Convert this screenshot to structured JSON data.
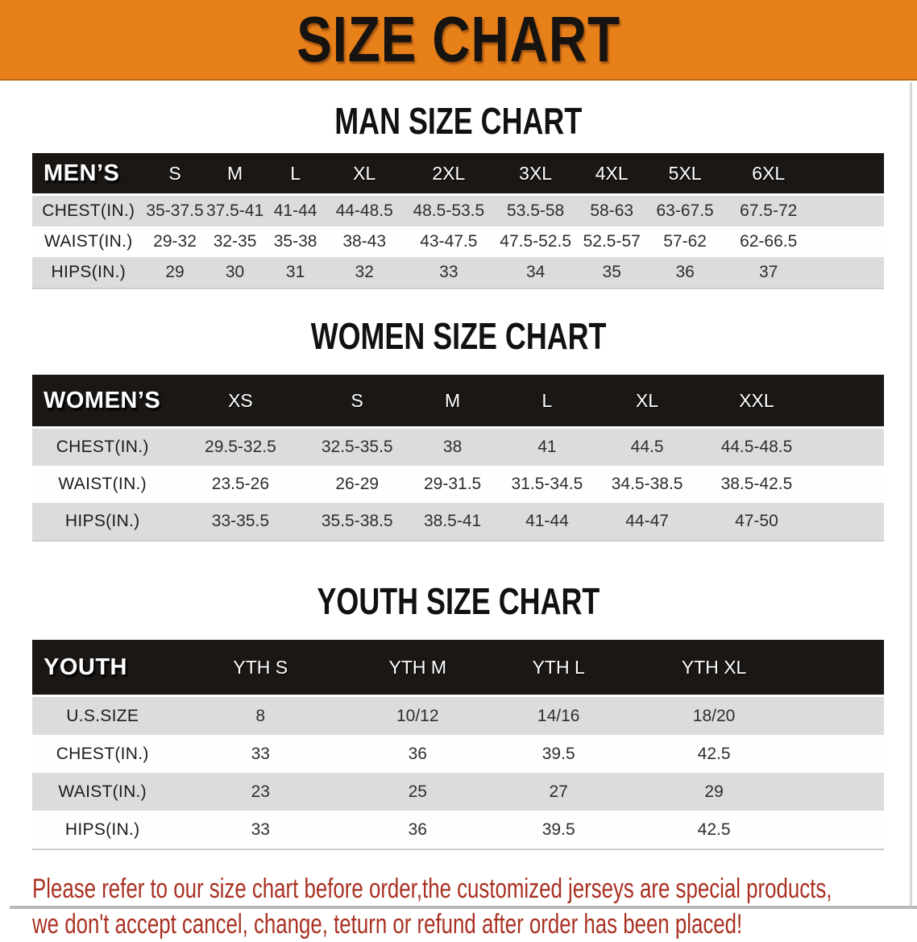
{
  "banner": {
    "title": "SIZE CHART"
  },
  "sections": [
    {
      "heading": "MAN SIZE CHART",
      "table": {
        "corner_label": "MEN’S",
        "columns": [
          "S",
          "M",
          "L",
          "XL",
          "2XL",
          "3XL",
          "4XL",
          "5XL",
          "6XL"
        ],
        "rows": [
          {
            "label": "CHEST(IN.)",
            "values": [
              "35-37.5",
              "37.5-41",
              "41-44",
              "44-48.5",
              "48.5-53.5",
              "53.5-58",
              "58-63",
              "63-67.5",
              "67.5-72"
            ]
          },
          {
            "label": "WAIST(IN.)",
            "values": [
              "29-32",
              "32-35",
              "35-38",
              "38-43",
              "43-47.5",
              "47.5-52.5",
              "52.5-57",
              "57-62",
              "62-66.5"
            ]
          },
          {
            "label": "HIPS(IN.)",
            "values": [
              "29",
              "30",
              "31",
              "32",
              "33",
              "34",
              "35",
              "36",
              "37"
            ]
          }
        ]
      }
    },
    {
      "heading": "WOMEN SIZE CHART",
      "table": {
        "corner_label": "WOMEN’S",
        "columns": [
          "XS",
          "S",
          "M",
          "L",
          "XL",
          "XXL"
        ],
        "rows": [
          {
            "label": "CHEST(IN.)",
            "values": [
              "29.5-32.5",
              "32.5-35.5",
              "38",
              "41",
              "44.5",
              "44.5-48.5"
            ]
          },
          {
            "label": "WAIST(IN.)",
            "values": [
              "23.5-26",
              "26-29",
              "29-31.5",
              "31.5-34.5",
              "34.5-38.5",
              "38.5-42.5"
            ]
          },
          {
            "label": "HIPS(IN.)",
            "values": [
              "33-35.5",
              "35.5-38.5",
              "38.5-41",
              "41-44",
              "44-47",
              "47-50"
            ]
          }
        ]
      }
    },
    {
      "heading": "YOUTH SIZE CHART",
      "table": {
        "corner_label": "YOUTH",
        "columns": [
          "YTH S",
          "YTH M",
          "YTH L",
          "YTH XL"
        ],
        "rows": [
          {
            "label": "U.S.SIZE",
            "values": [
              "8",
              "10/12",
              "14/16",
              "18/20"
            ]
          },
          {
            "label": "CHEST(IN.)",
            "values": [
              "33",
              "36",
              "39.5",
              "42.5"
            ]
          },
          {
            "label": "WAIST(IN.)",
            "values": [
              "23",
              "25",
              "27",
              "29"
            ]
          },
          {
            "label": "HIPS(IN.)",
            "values": [
              "33",
              "36",
              "39.5",
              "42.5"
            ]
          }
        ]
      }
    }
  ],
  "footer": {
    "line1": "Please refer to our size chart before order,the customized jerseys are special products,",
    "line2": "we don't accept cancel, change, teturn or refund after order has been placed!"
  },
  "colors": {
    "banner_bg": "#E8801A",
    "table_header_bg": "#1A1715",
    "row_alt_bg": "#DCDCDC",
    "footer_text": "#A93122"
  }
}
